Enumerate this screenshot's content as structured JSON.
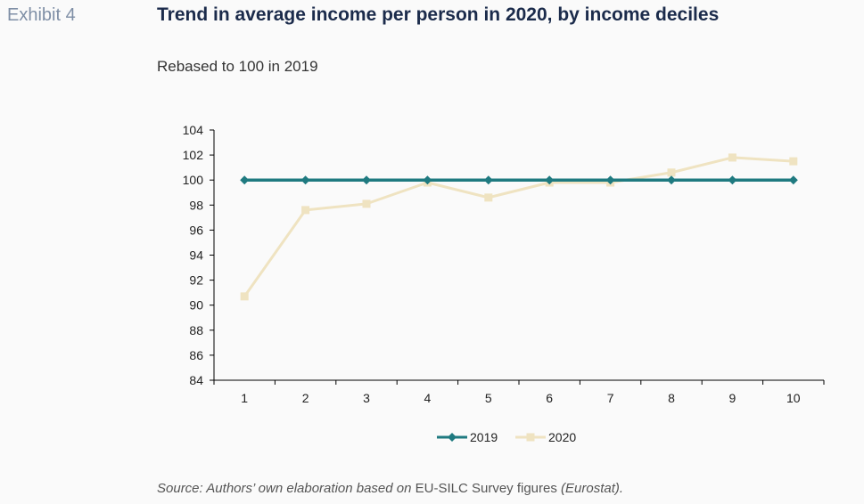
{
  "header": {
    "exhibit": "Exhibit 4",
    "title": "Trend in average income per person in 2020, by income deciles",
    "subtitle": "Rebased to 100 in 2019"
  },
  "source": {
    "prefix": "Source: Authors’ own elaboration based on ",
    "middle": "EU-SILC Survey figures",
    "suffix": " (Eurostat)."
  },
  "colors": {
    "series_2019": "#1f7a80",
    "series_2020": "#efe3c1",
    "axis": "#000000"
  },
  "chart_data": {
    "type": "line",
    "title": "Trend in average income per person in 2020, by income deciles",
    "subtitle": "Rebased to 100 in 2019",
    "xlabel": "",
    "ylabel": "",
    "x": [
      1,
      2,
      3,
      4,
      5,
      6,
      7,
      8,
      9,
      10
    ],
    "ylim": [
      84,
      104
    ],
    "yticks": [
      84,
      86,
      88,
      90,
      92,
      94,
      96,
      98,
      100,
      102,
      104
    ],
    "grid": false,
    "legend_position": "bottom",
    "series": [
      {
        "name": "2019",
        "marker": "diamond",
        "values": [
          100,
          100,
          100,
          100,
          100,
          100,
          100,
          100,
          100,
          100
        ]
      },
      {
        "name": "2020",
        "marker": "square",
        "values": [
          90.7,
          97.6,
          98.1,
          99.8,
          98.6,
          99.8,
          99.8,
          100.6,
          101.8,
          101.5
        ]
      }
    ]
  }
}
